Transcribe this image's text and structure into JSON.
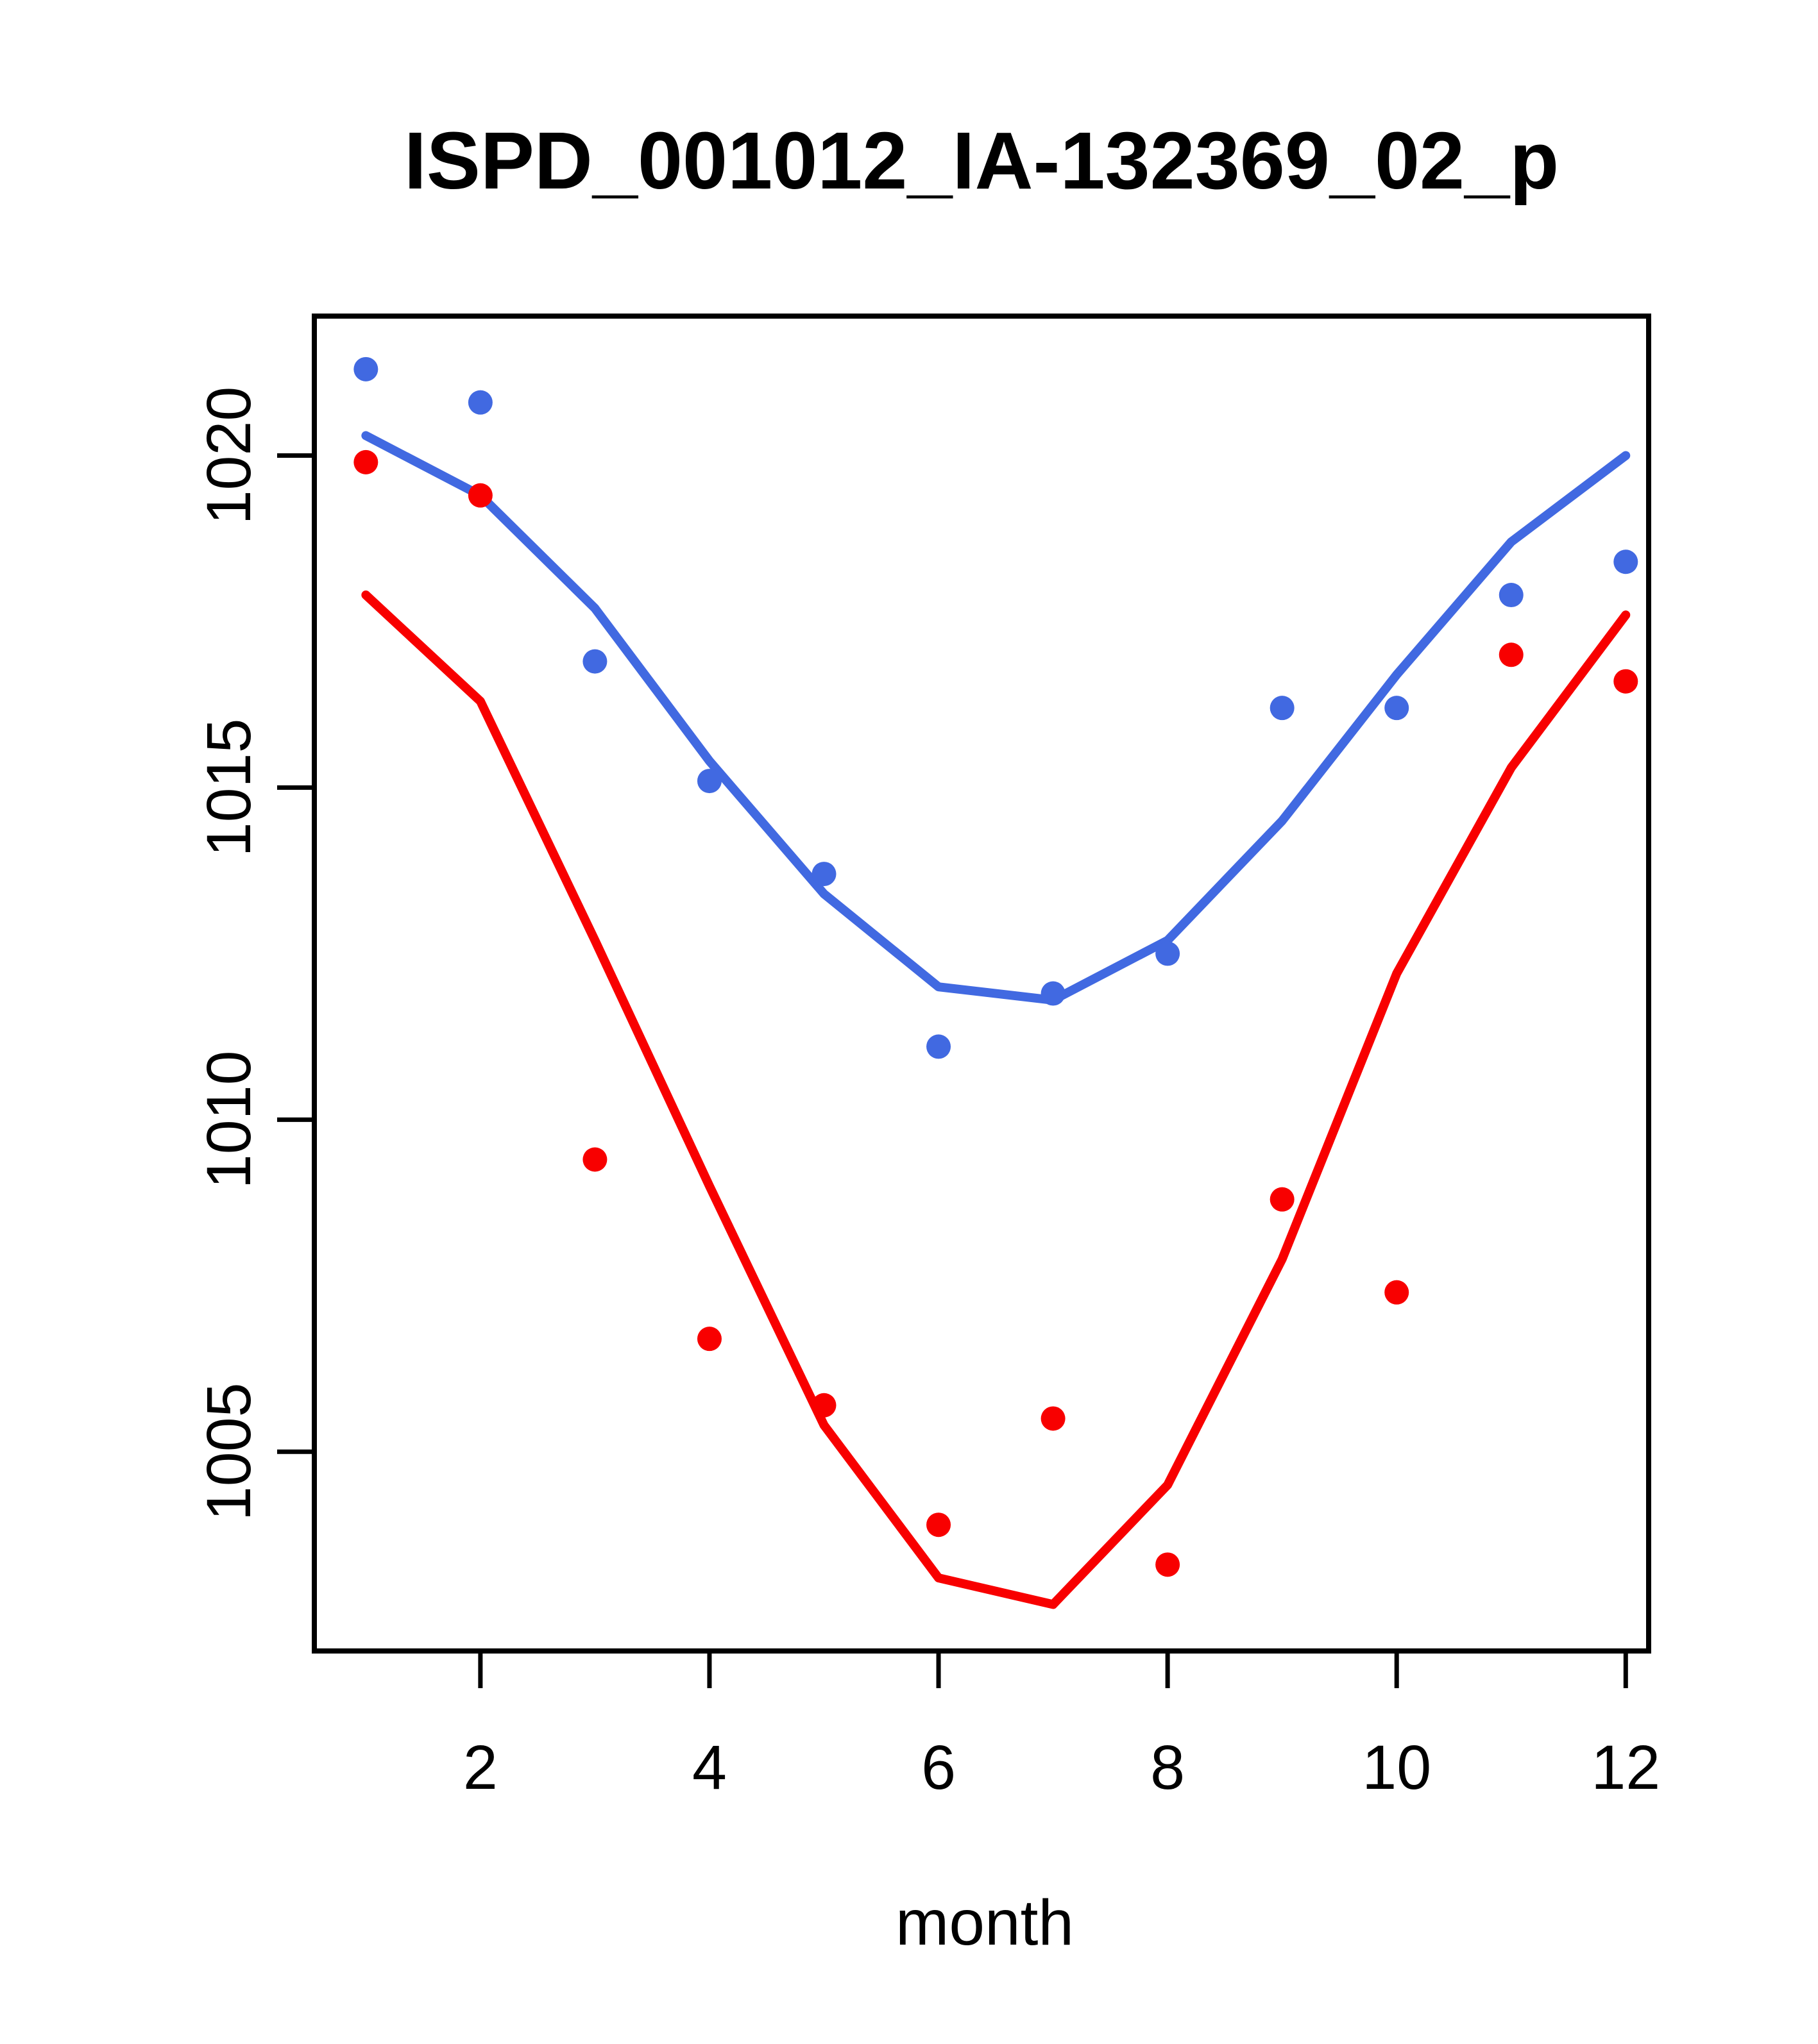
{
  "figure": {
    "title": "ISPD_001012_IA-132369_02_p",
    "x_axis_label": "month",
    "y_axis_label": "",
    "background_color": "#ffffff",
    "axis_color": "#000000"
  },
  "chart_data": {
    "type": "scatter",
    "title": "ISPD_001012_IA-132369_02_p",
    "xlabel": "month",
    "ylabel": "",
    "grid": false,
    "legend_position": "none",
    "x": [
      1,
      2,
      3,
      4,
      5,
      6,
      7,
      8,
      9,
      10,
      11,
      12
    ],
    "xticks": [
      2,
      4,
      6,
      8,
      10,
      12
    ],
    "yticks": [
      1005,
      1010,
      1015,
      1020
    ],
    "xlim": [
      0.55,
      12.2
    ],
    "ylim": [
      1002.0,
      1022.1
    ],
    "series": [
      {
        "name": "group1-points-blue",
        "kind": "points",
        "color": "#4169E1",
        "y": [
          1021.3,
          1020.8,
          1016.9,
          1015.1,
          1013.7,
          1011.1,
          1011.9,
          1012.5,
          1016.2,
          1016.2,
          1017.9,
          1018.4
        ]
      },
      {
        "name": "group1-smooth-line-blue",
        "kind": "line",
        "color": "#4169E1",
        "y": [
          1020.3,
          1019.4,
          1017.7,
          1015.4,
          1013.4,
          1012.0,
          1011.8,
          1012.7,
          1014.5,
          1016.7,
          1018.7,
          1020.0
        ]
      },
      {
        "name": "group2-points-red",
        "kind": "points",
        "color": "#F80000",
        "y": [
          1019.9,
          1019.4,
          1009.4,
          1006.7,
          1005.7,
          1003.9,
          1005.5,
          1003.3,
          1008.8,
          1007.4,
          1017.0,
          1016.6
        ]
      },
      {
        "name": "group2-smooth-line-red",
        "kind": "line",
        "color": "#F80000",
        "y": [
          1017.9,
          1016.3,
          1012.7,
          1009.0,
          1005.4,
          1003.1,
          1002.7,
          1004.5,
          1007.9,
          1012.2,
          1015.3,
          1017.6
        ]
      }
    ]
  }
}
